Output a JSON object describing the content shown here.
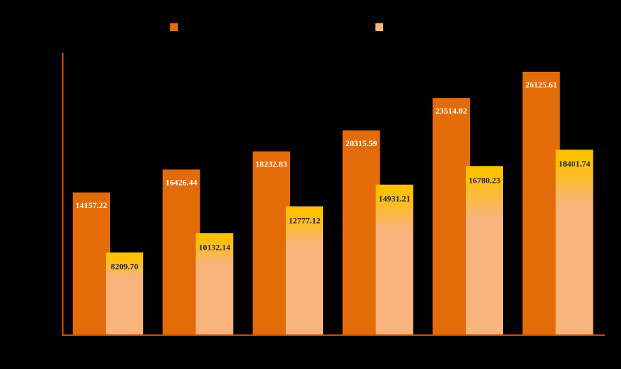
{
  "chart_data": {
    "type": "bar",
    "categories": [
      "",
      "",
      "",
      "",
      "",
      ""
    ],
    "series": [
      {
        "name": "",
        "color": "#E36C09",
        "values": [
          14157.22,
          16426.44,
          18232.83,
          20315.59,
          23514.02,
          26125.61
        ],
        "labels": [
          "14157.22",
          "16426.44",
          "18232.83",
          "20315.59",
          "23514.02",
          "26125.61"
        ]
      },
      {
        "name": "",
        "color": "#F8B47C",
        "gradient_top_color": "#FFC000",
        "values": [
          8209.7,
          10132.14,
          12777.12,
          14931.21,
          16780.23,
          18401.74
        ],
        "labels": [
          "8209.70",
          "10132.14",
          "12777.12",
          "14931.21",
          "16780.23",
          "18401.74"
        ]
      }
    ],
    "ylim": [
      0,
      28000
    ],
    "legend": "top",
    "grid": false,
    "axis_color": "#C0500A",
    "background": "#000000"
  }
}
